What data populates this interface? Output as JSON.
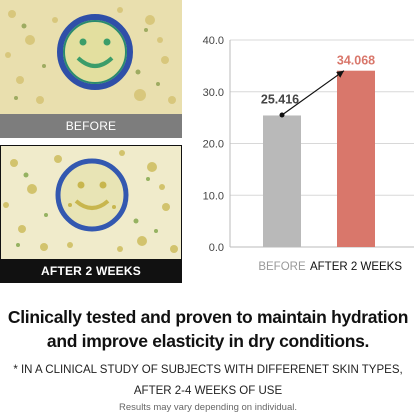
{
  "photos": {
    "before_caption": "BEFORE",
    "after_caption": "AFTER 2 WEEKS"
  },
  "chart_data": {
    "type": "bar",
    "categories": [
      "BEFORE",
      "AFTER 2 WEEKS"
    ],
    "values": [
      25.416,
      34.068
    ],
    "value_labels": [
      "25.416",
      "34.068"
    ],
    "ylim": [
      0,
      40
    ],
    "yticks": [
      "0.0",
      "10.0",
      "20.0",
      "30.0",
      "40.0"
    ],
    "ytick_values": [
      0,
      10,
      20,
      30,
      40
    ],
    "grid": true,
    "colors": {
      "before": "#b9b9b9",
      "after": "#d9776b",
      "after_label": "#d9776b",
      "before_label": "#444444",
      "arrow": "#111111"
    },
    "annotation": "arrow from BEFORE value to AFTER value"
  },
  "text": {
    "headline_line1": "Clinically tested and proven to maintain hydration",
    "headline_line2": "and improve elasticity in dry conditions.",
    "note_line1": "* IN A CLINICAL STUDY OF SUBJECTS WITH DIFFERENET SKIN TYPES,",
    "note_line2": "AFTER 2-4 WEEKS OF USE",
    "disclaimer": "Results may vary depending on individual."
  }
}
